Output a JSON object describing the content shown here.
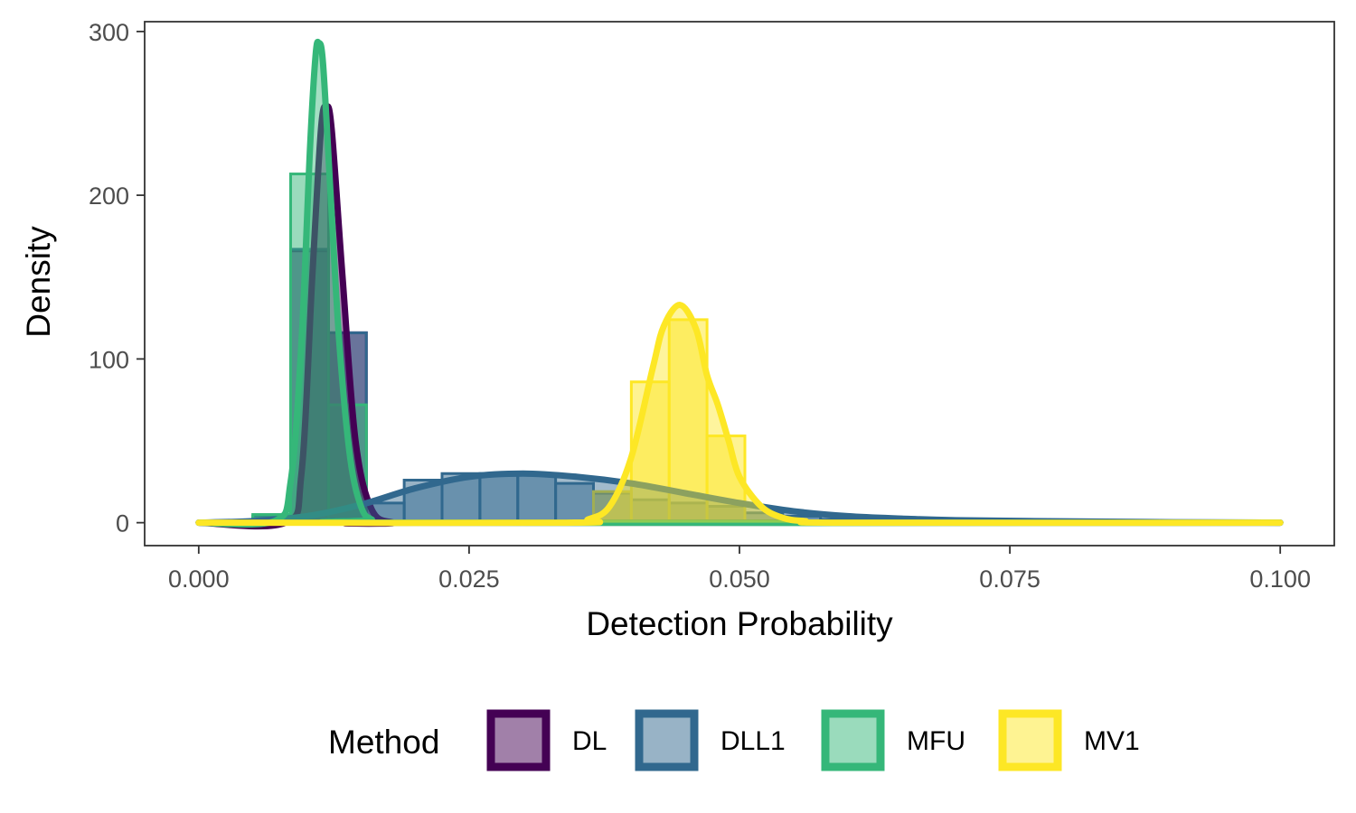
{
  "chart_data": {
    "type": "histogram",
    "xlabel": "Detection Probability",
    "ylabel": "Density",
    "xlim": [
      -0.005,
      0.105
    ],
    "ylim": [
      -14,
      306
    ],
    "x_ticks": [
      "0.000",
      "0.025",
      "0.050",
      "0.075",
      "0.100"
    ],
    "y_ticks": [
      "0",
      "100",
      "200",
      "300"
    ],
    "grid": false,
    "legend": {
      "title": "Method",
      "position": "bottom",
      "entries": [
        "DL",
        "DLL1",
        "MFU",
        "MV1"
      ]
    },
    "bin_width": 0.0035,
    "series": [
      {
        "name": "DL",
        "color": "#440154",
        "bins": [
          {
            "x0": 0.0085,
            "x1": 0.012,
            "density": 166
          },
          {
            "x0": 0.012,
            "x1": 0.0155,
            "density": 116
          }
        ],
        "density_curve": [
          [
            0.0,
            0
          ],
          [
            0.008,
            0
          ],
          [
            0.0095,
            30
          ],
          [
            0.0105,
            150
          ],
          [
            0.0113,
            240
          ],
          [
            0.0118,
            254
          ],
          [
            0.0123,
            240
          ],
          [
            0.0133,
            150
          ],
          [
            0.0145,
            50
          ],
          [
            0.016,
            8
          ],
          [
            0.018,
            0
          ],
          [
            0.02,
            0
          ],
          [
            0.1,
            0
          ]
        ]
      },
      {
        "name": "DLL1",
        "color": "#31688E",
        "bins": [
          {
            "x0": 0.0015,
            "x1": 0.005,
            "density": 0
          },
          {
            "x0": 0.005,
            "x1": 0.0085,
            "density": 4
          },
          {
            "x0": 0.0085,
            "x1": 0.012,
            "density": 167
          },
          {
            "x0": 0.012,
            "x1": 0.0155,
            "density": 116
          },
          {
            "x0": 0.0155,
            "x1": 0.019,
            "density": 12
          },
          {
            "x0": 0.019,
            "x1": 0.0225,
            "density": 26
          },
          {
            "x0": 0.0225,
            "x1": 0.026,
            "density": 30
          },
          {
            "x0": 0.026,
            "x1": 0.0295,
            "density": 30
          },
          {
            "x0": 0.0295,
            "x1": 0.033,
            "density": 30
          },
          {
            "x0": 0.033,
            "x1": 0.0365,
            "density": 24
          },
          {
            "x0": 0.0365,
            "x1": 0.04,
            "density": 18
          },
          {
            "x0": 0.04,
            "x1": 0.0435,
            "density": 14
          },
          {
            "x0": 0.0435,
            "x1": 0.047,
            "density": 12
          },
          {
            "x0": 0.047,
            "x1": 0.0505,
            "density": 10
          },
          {
            "x0": 0.0505,
            "x1": 0.054,
            "density": 6
          },
          {
            "x0": 0.054,
            "x1": 0.0575,
            "density": 4
          },
          {
            "x0": 0.0575,
            "x1": 0.061,
            "density": 2
          },
          {
            "x0": 0.061,
            "x1": 0.0645,
            "density": 1
          }
        ],
        "density_curve": [
          [
            0.0,
            0
          ],
          [
            0.005,
            1
          ],
          [
            0.01,
            4
          ],
          [
            0.015,
            11
          ],
          [
            0.02,
            21
          ],
          [
            0.025,
            28
          ],
          [
            0.03,
            30
          ],
          [
            0.035,
            28
          ],
          [
            0.04,
            24
          ],
          [
            0.045,
            18
          ],
          [
            0.05,
            12
          ],
          [
            0.055,
            7
          ],
          [
            0.06,
            4
          ],
          [
            0.065,
            2.5
          ],
          [
            0.07,
            1.5
          ],
          [
            0.08,
            0.8
          ],
          [
            0.09,
            0.3
          ],
          [
            0.1,
            0
          ]
        ]
      },
      {
        "name": "MFU",
        "color": "#35B779",
        "bins": [
          {
            "x0": 0.005,
            "x1": 0.0085,
            "density": 5
          },
          {
            "x0": 0.0085,
            "x1": 0.012,
            "density": 213
          },
          {
            "x0": 0.012,
            "x1": 0.0155,
            "density": 72
          },
          {
            "x0": 0.0155,
            "x1": 0.019,
            "density": 0
          },
          {
            "x0": 0.0365,
            "x1": 0.04,
            "density": 1
          },
          {
            "x0": 0.04,
            "x1": 0.0435,
            "density": 1
          },
          {
            "x0": 0.0435,
            "x1": 0.047,
            "density": 1
          },
          {
            "x0": 0.047,
            "x1": 0.0505,
            "density": 1
          },
          {
            "x0": 0.0505,
            "x1": 0.054,
            "density": 0
          }
        ],
        "density_curve": [
          [
            0.0,
            0
          ],
          [
            0.007,
            1
          ],
          [
            0.0085,
            25
          ],
          [
            0.0095,
            110
          ],
          [
            0.0103,
            230
          ],
          [
            0.0108,
            285
          ],
          [
            0.0111,
            293
          ],
          [
            0.0115,
            280
          ],
          [
            0.0122,
            200
          ],
          [
            0.013,
            110
          ],
          [
            0.014,
            40
          ],
          [
            0.015,
            10
          ],
          [
            0.016,
            2
          ],
          [
            0.018,
            0
          ],
          [
            0.1,
            0
          ]
        ]
      },
      {
        "name": "MV1",
        "color": "#FDE725",
        "bins": [
          {
            "x0": 0.0365,
            "x1": 0.04,
            "density": 19
          },
          {
            "x0": 0.04,
            "x1": 0.0435,
            "density": 86
          },
          {
            "x0": 0.0435,
            "x1": 0.047,
            "density": 124
          },
          {
            "x0": 0.047,
            "x1": 0.0505,
            "density": 53
          },
          {
            "x0": 0.0505,
            "x1": 0.054,
            "density": 1
          }
        ],
        "density_curve": [
          [
            0.0,
            0
          ],
          [
            0.034,
            0
          ],
          [
            0.036,
            2
          ],
          [
            0.038,
            10
          ],
          [
            0.04,
            40
          ],
          [
            0.042,
            95
          ],
          [
            0.043,
            120
          ],
          [
            0.0445,
            133
          ],
          [
            0.046,
            118
          ],
          [
            0.047,
            90
          ],
          [
            0.048,
            72
          ],
          [
            0.049,
            50
          ],
          [
            0.05,
            28
          ],
          [
            0.052,
            10
          ],
          [
            0.054,
            3
          ],
          [
            0.056,
            1
          ],
          [
            0.06,
            0
          ],
          [
            0.1,
            0
          ]
        ]
      }
    ]
  }
}
